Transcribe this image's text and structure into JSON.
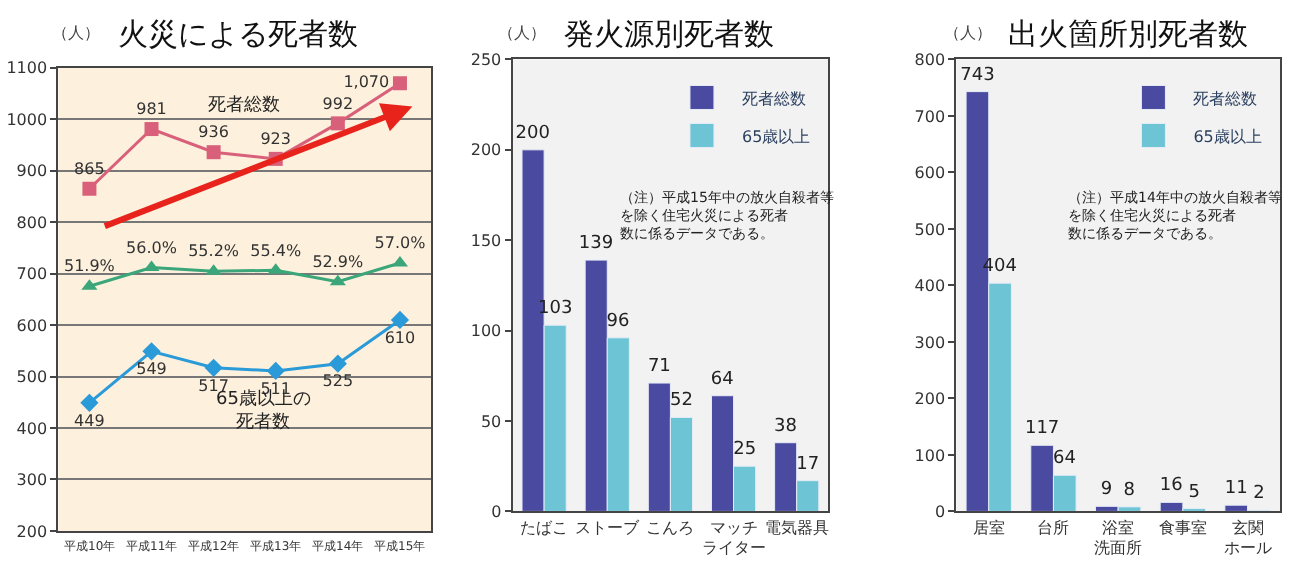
{
  "chart_data": [
    {
      "type": "line",
      "title": "火災による死者数",
      "ylabel": "（人）",
      "categories": [
        "平成10年",
        "平成11年",
        "平成12年",
        "平成13年",
        "平成14年",
        "平成15年"
      ],
      "ylim": [
        200,
        1100
      ],
      "yticks": [
        200,
        300,
        400,
        500,
        600,
        700,
        800,
        900,
        1000,
        1100
      ],
      "y2lim": [
        -2,
        100
      ],
      "tick_labels": "y",
      "grid": "y",
      "legend": false,
      "series": [
        {
          "name": "死者総数",
          "color": "#d9607a",
          "marker": "square",
          "values": [
            865,
            981,
            936,
            923,
            992,
            1070
          ],
          "value_labels": [
            "865",
            "981",
            "936",
            "923",
            "992",
            "1,070"
          ]
        },
        {
          "color": "#3aa67a",
          "marker": "triangle",
          "axis": "y2",
          "values": [
            51.9,
            56.0,
            55.2,
            55.4,
            52.9,
            57.0
          ],
          "value_labels": [
            "51.9%",
            "56.0%",
            "55.2%",
            "55.4%",
            "52.9%",
            "57.0%"
          ]
        },
        {
          "name": "65歳以上の死者数",
          "color": "#2a9ad8",
          "marker": "diamond",
          "values": [
            449,
            549,
            517,
            511,
            525,
            610
          ],
          "value_labels": [
            "449",
            "549",
            "517",
            "511",
            "525",
            "610"
          ]
        }
      ]
    },
    {
      "type": "bar",
      "title": "発火源別死者数",
      "ylabel": "（人）",
      "categories": [
        "たばこ",
        "ストーブ",
        "こんろ",
        "マッチライター",
        "電気器具"
      ],
      "ylim": [
        0,
        250
      ],
      "yticks": [
        0,
        50,
        100,
        150,
        200,
        250
      ],
      "legend": "top right",
      "data_labels": true,
      "annotations": [
        "（注）平成15年中の放火自殺者等を除く住宅火災による死者数に係るデータである。"
      ],
      "series": [
        {
          "name": "死者総数",
          "color": "#4a4aa0",
          "values": [
            200,
            139,
            71,
            64,
            38
          ]
        },
        {
          "name": "65歳以上",
          "color": "#6cc4d4",
          "values": [
            103,
            96,
            52,
            25,
            17
          ]
        }
      ]
    },
    {
      "type": "bar",
      "title": "出火箇所別死者数",
      "ylabel": "（人）",
      "categories": [
        "居室",
        "台所",
        "浴室洗面所",
        "食事室",
        "玄関ホール"
      ],
      "ylim": [
        0,
        800
      ],
      "yticks": [
        0,
        100,
        200,
        300,
        400,
        500,
        600,
        700,
        800
      ],
      "legend": "top right",
      "data_labels": true,
      "annotations": [
        "（注）平成14年中の放火自殺者等を除く住宅火災による死者数に係るデータである。"
      ],
      "series": [
        {
          "name": "死者総数",
          "color": "#4a4aa0",
          "values": [
            743,
            117,
            9,
            16,
            11
          ]
        },
        {
          "name": "65歳以上",
          "color": "#6cc4d4",
          "values": [
            404,
            64,
            8,
            5,
            2
          ]
        }
      ]
    }
  ]
}
